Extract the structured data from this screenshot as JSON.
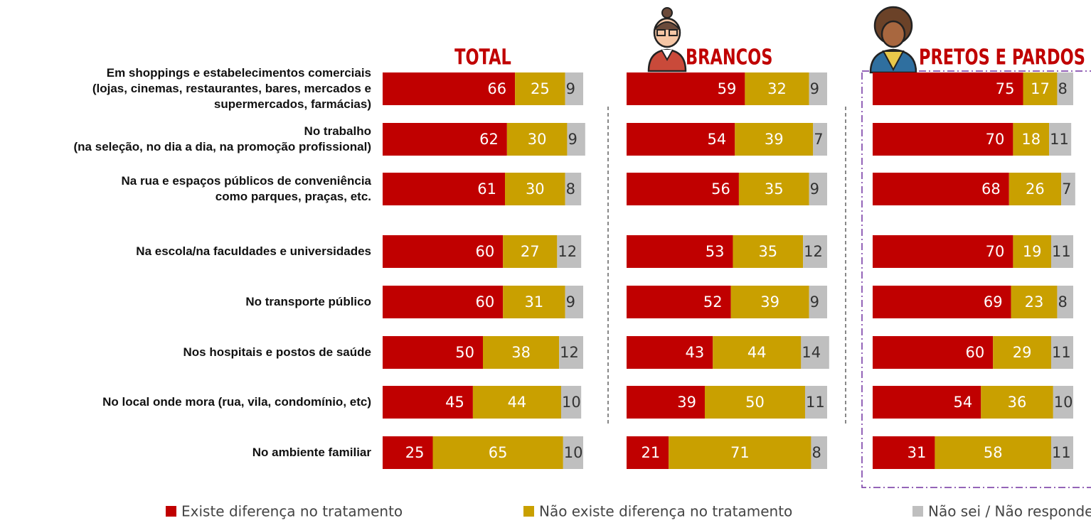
{
  "chart_data": [
    {
      "type": "bar",
      "title": "TOTAL",
      "categories": [
        "Em shoppings e estabelecimentos comerciais\n(lojas, cinemas, restaurantes, bares, mercados e\nsupermercados, farmácias)",
        "No trabalho\n(na seleção, no dia a dia, na promoção profissional)",
        "Na rua e espaços públicos de conveniência\ncomo parques, praças, etc.",
        "Na escola/na faculdades e universidades",
        "No transporte público",
        "Nos hospitais e postos de saúde",
        "No local onde mora (rua, vila, condomínio, etc)",
        "No ambiente familiar"
      ],
      "series": [
        {
          "name": "Existe diferença no tratamento",
          "color": "#c00000",
          "values": [
            66,
            62,
            61,
            60,
            60,
            50,
            45,
            25
          ]
        },
        {
          "name": "Não existe diferença no tratamento",
          "color": "#c9a000",
          "values": [
            25,
            30,
            30,
            27,
            31,
            38,
            44,
            65
          ]
        },
        {
          "name": "Não sei / Não respondeu",
          "color": "#bfbfbf",
          "values": [
            9,
            9,
            8,
            12,
            9,
            12,
            10,
            10
          ]
        }
      ]
    },
    {
      "type": "bar",
      "title": "BRANCOS",
      "series": [
        {
          "color": "#c00000",
          "values": [
            59,
            54,
            56,
            53,
            52,
            43,
            39,
            21
          ]
        },
        {
          "color": "#c9a000",
          "values": [
            32,
            39,
            35,
            35,
            39,
            44,
            50,
            71
          ]
        },
        {
          "color": "#bfbfbf",
          "values": [
            9,
            7,
            9,
            12,
            9,
            14,
            11,
            8
          ]
        }
      ]
    },
    {
      "type": "bar",
      "title": "PRETOS E PARDOS",
      "series": [
        {
          "color": "#c00000",
          "values": [
            75,
            70,
            68,
            70,
            69,
            60,
            54,
            31
          ]
        },
        {
          "color": "#c9a000",
          "values": [
            17,
            18,
            26,
            19,
            23,
            29,
            36,
            58
          ]
        },
        {
          "color": "#bfbfbf",
          "values": [
            8,
            11,
            7,
            11,
            8,
            11,
            10,
            11
          ]
        }
      ]
    }
  ]
}
